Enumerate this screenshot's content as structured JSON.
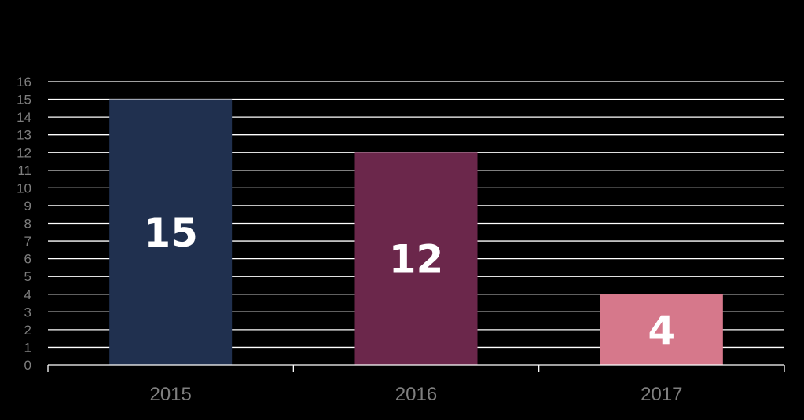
{
  "chart_data": {
    "type": "bar",
    "categories": [
      "2015",
      "2016",
      "2017"
    ],
    "values": [
      15,
      12,
      4
    ],
    "data_labels": [
      "15",
      "12",
      "4"
    ],
    "bar_colors": [
      "#20304f",
      "#6b274b",
      "#d6788b"
    ],
    "yticks": [
      "0",
      "1",
      "2",
      "3",
      "4",
      "5",
      "6",
      "7",
      "8",
      "9",
      "10",
      "11",
      "12",
      "13",
      "14",
      "15",
      "16"
    ],
    "ylim": [
      0,
      16
    ],
    "grid": true,
    "title": "",
    "xlabel": "",
    "ylabel": ""
  }
}
